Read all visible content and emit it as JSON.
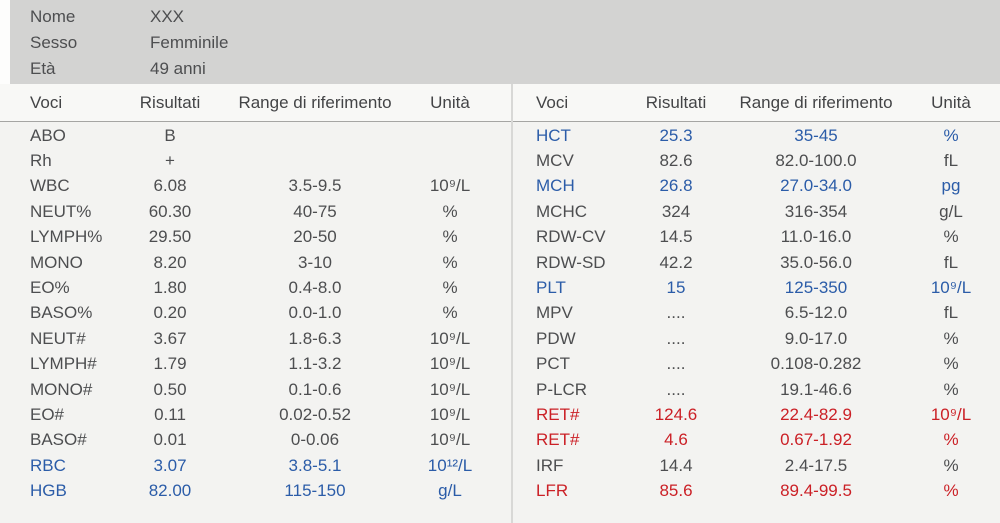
{
  "patient": {
    "fields": [
      {
        "label": "Nome",
        "value": "XXX"
      },
      {
        "label": "Sesso",
        "value": "Femminile"
      },
      {
        "label": "Età",
        "value": "49 anni"
      }
    ]
  },
  "columns": [
    "Voci",
    "Risultati",
    "Range di riferimento",
    "Unità"
  ],
  "left_table": {
    "rows": [
      {
        "voce": "ABO",
        "risultato": "B",
        "range": "",
        "unita": "",
        "color": "default"
      },
      {
        "voce": "Rh",
        "risultato": "+",
        "range": "",
        "unita": "",
        "color": "default"
      },
      {
        "voce": "WBC",
        "risultato": "6.08",
        "range": "3.5-9.5",
        "unita": "10⁹/L",
        "color": "default"
      },
      {
        "voce": "NEUT%",
        "risultato": "60.30",
        "range": "40-75",
        "unita": "%",
        "color": "default"
      },
      {
        "voce": "LYMPH%",
        "risultato": "29.50",
        "range": "20-50",
        "unita": "%",
        "color": "default"
      },
      {
        "voce": "MONO",
        "risultato": "8.20",
        "range": "3-10",
        "unita": "%",
        "color": "default"
      },
      {
        "voce": "EO%",
        "risultato": "1.80",
        "range": "0.4-8.0",
        "unita": "%",
        "color": "default"
      },
      {
        "voce": "BASO%",
        "risultato": "0.20",
        "range": "0.0-1.0",
        "unita": "%",
        "color": "default"
      },
      {
        "voce": "NEUT#",
        "risultato": "3.67",
        "range": "1.8-6.3",
        "unita": "10⁹/L",
        "color": "default"
      },
      {
        "voce": "LYMPH#",
        "risultato": "1.79",
        "range": "1.1-3.2",
        "unita": "10⁹/L",
        "color": "default"
      },
      {
        "voce": "MONO#",
        "risultato": "0.50",
        "range": "0.1-0.6",
        "unita": "10⁹/L",
        "color": "default"
      },
      {
        "voce": "EO#",
        "risultato": "0.11",
        "range": "0.02-0.52",
        "unita": "10⁹/L",
        "color": "default"
      },
      {
        "voce": "BASO#",
        "risultato": "0.01",
        "range": "0-0.06",
        "unita": "10⁹/L",
        "color": "default"
      },
      {
        "voce": "RBC",
        "risultato": "3.07",
        "range": "3.8-5.1",
        "unita": "10¹²/L",
        "color": "blue"
      },
      {
        "voce": "HGB",
        "risultato": "82.00",
        "range": "115-150",
        "unita": "g/L",
        "color": "blue"
      }
    ]
  },
  "right_table": {
    "rows": [
      {
        "voce": "HCT",
        "risultato": "25.3",
        "range": "35-45",
        "unita": "%",
        "color": "blue"
      },
      {
        "voce": "MCV",
        "risultato": "82.6",
        "range": "82.0-100.0",
        "unita": "fL",
        "color": "default"
      },
      {
        "voce": "MCH",
        "risultato": "26.8",
        "range": "27.0-34.0",
        "unita": "pg",
        "color": "blue"
      },
      {
        "voce": "MCHC",
        "risultato": "324",
        "range": "316-354",
        "unita": "g/L",
        "color": "default"
      },
      {
        "voce": "RDW-CV",
        "risultato": "14.5",
        "range": "11.0-16.0",
        "unita": "%",
        "color": "default"
      },
      {
        "voce": "RDW-SD",
        "risultato": "42.2",
        "range": "35.0-56.0",
        "unita": "fL",
        "color": "default"
      },
      {
        "voce": "PLT",
        "risultato": "15",
        "range": "125-350",
        "unita": "10⁹/L",
        "color": "blue"
      },
      {
        "voce": "MPV",
        "risultato": "....",
        "range": "6.5-12.0",
        "unita": "fL",
        "color": "default"
      },
      {
        "voce": "PDW",
        "risultato": "....",
        "range": "9.0-17.0",
        "unita": "%",
        "color": "default"
      },
      {
        "voce": "PCT",
        "risultato": "....",
        "range": "0.108-0.282",
        "unita": "%",
        "color": "default"
      },
      {
        "voce": "P-LCR",
        "risultato": "....",
        "range": "19.1-46.6",
        "unita": "%",
        "color": "default"
      },
      {
        "voce": "RET#",
        "risultato": "124.6",
        "range": "22.4-82.9",
        "unita": "10⁹/L",
        "color": "red"
      },
      {
        "voce": "RET#",
        "risultato": "4.6",
        "range": "0.67-1.92",
        "unita": "%",
        "color": "red"
      },
      {
        "voce": "IRF",
        "risultato": "14.4",
        "range": "2.4-17.5",
        "unita": "%",
        "color": "default"
      },
      {
        "voce": "LFR",
        "risultato": "85.6",
        "range": "89.4-99.5",
        "unita": "%",
        "color": "red"
      }
    ]
  },
  "colors": {
    "out_of_range_blue": "#2b5ca8",
    "out_of_range_red": "#cb2026",
    "header_bg": "#d3d3d2",
    "body_bg": "#f3f3f1",
    "text": "#4d4e50"
  }
}
